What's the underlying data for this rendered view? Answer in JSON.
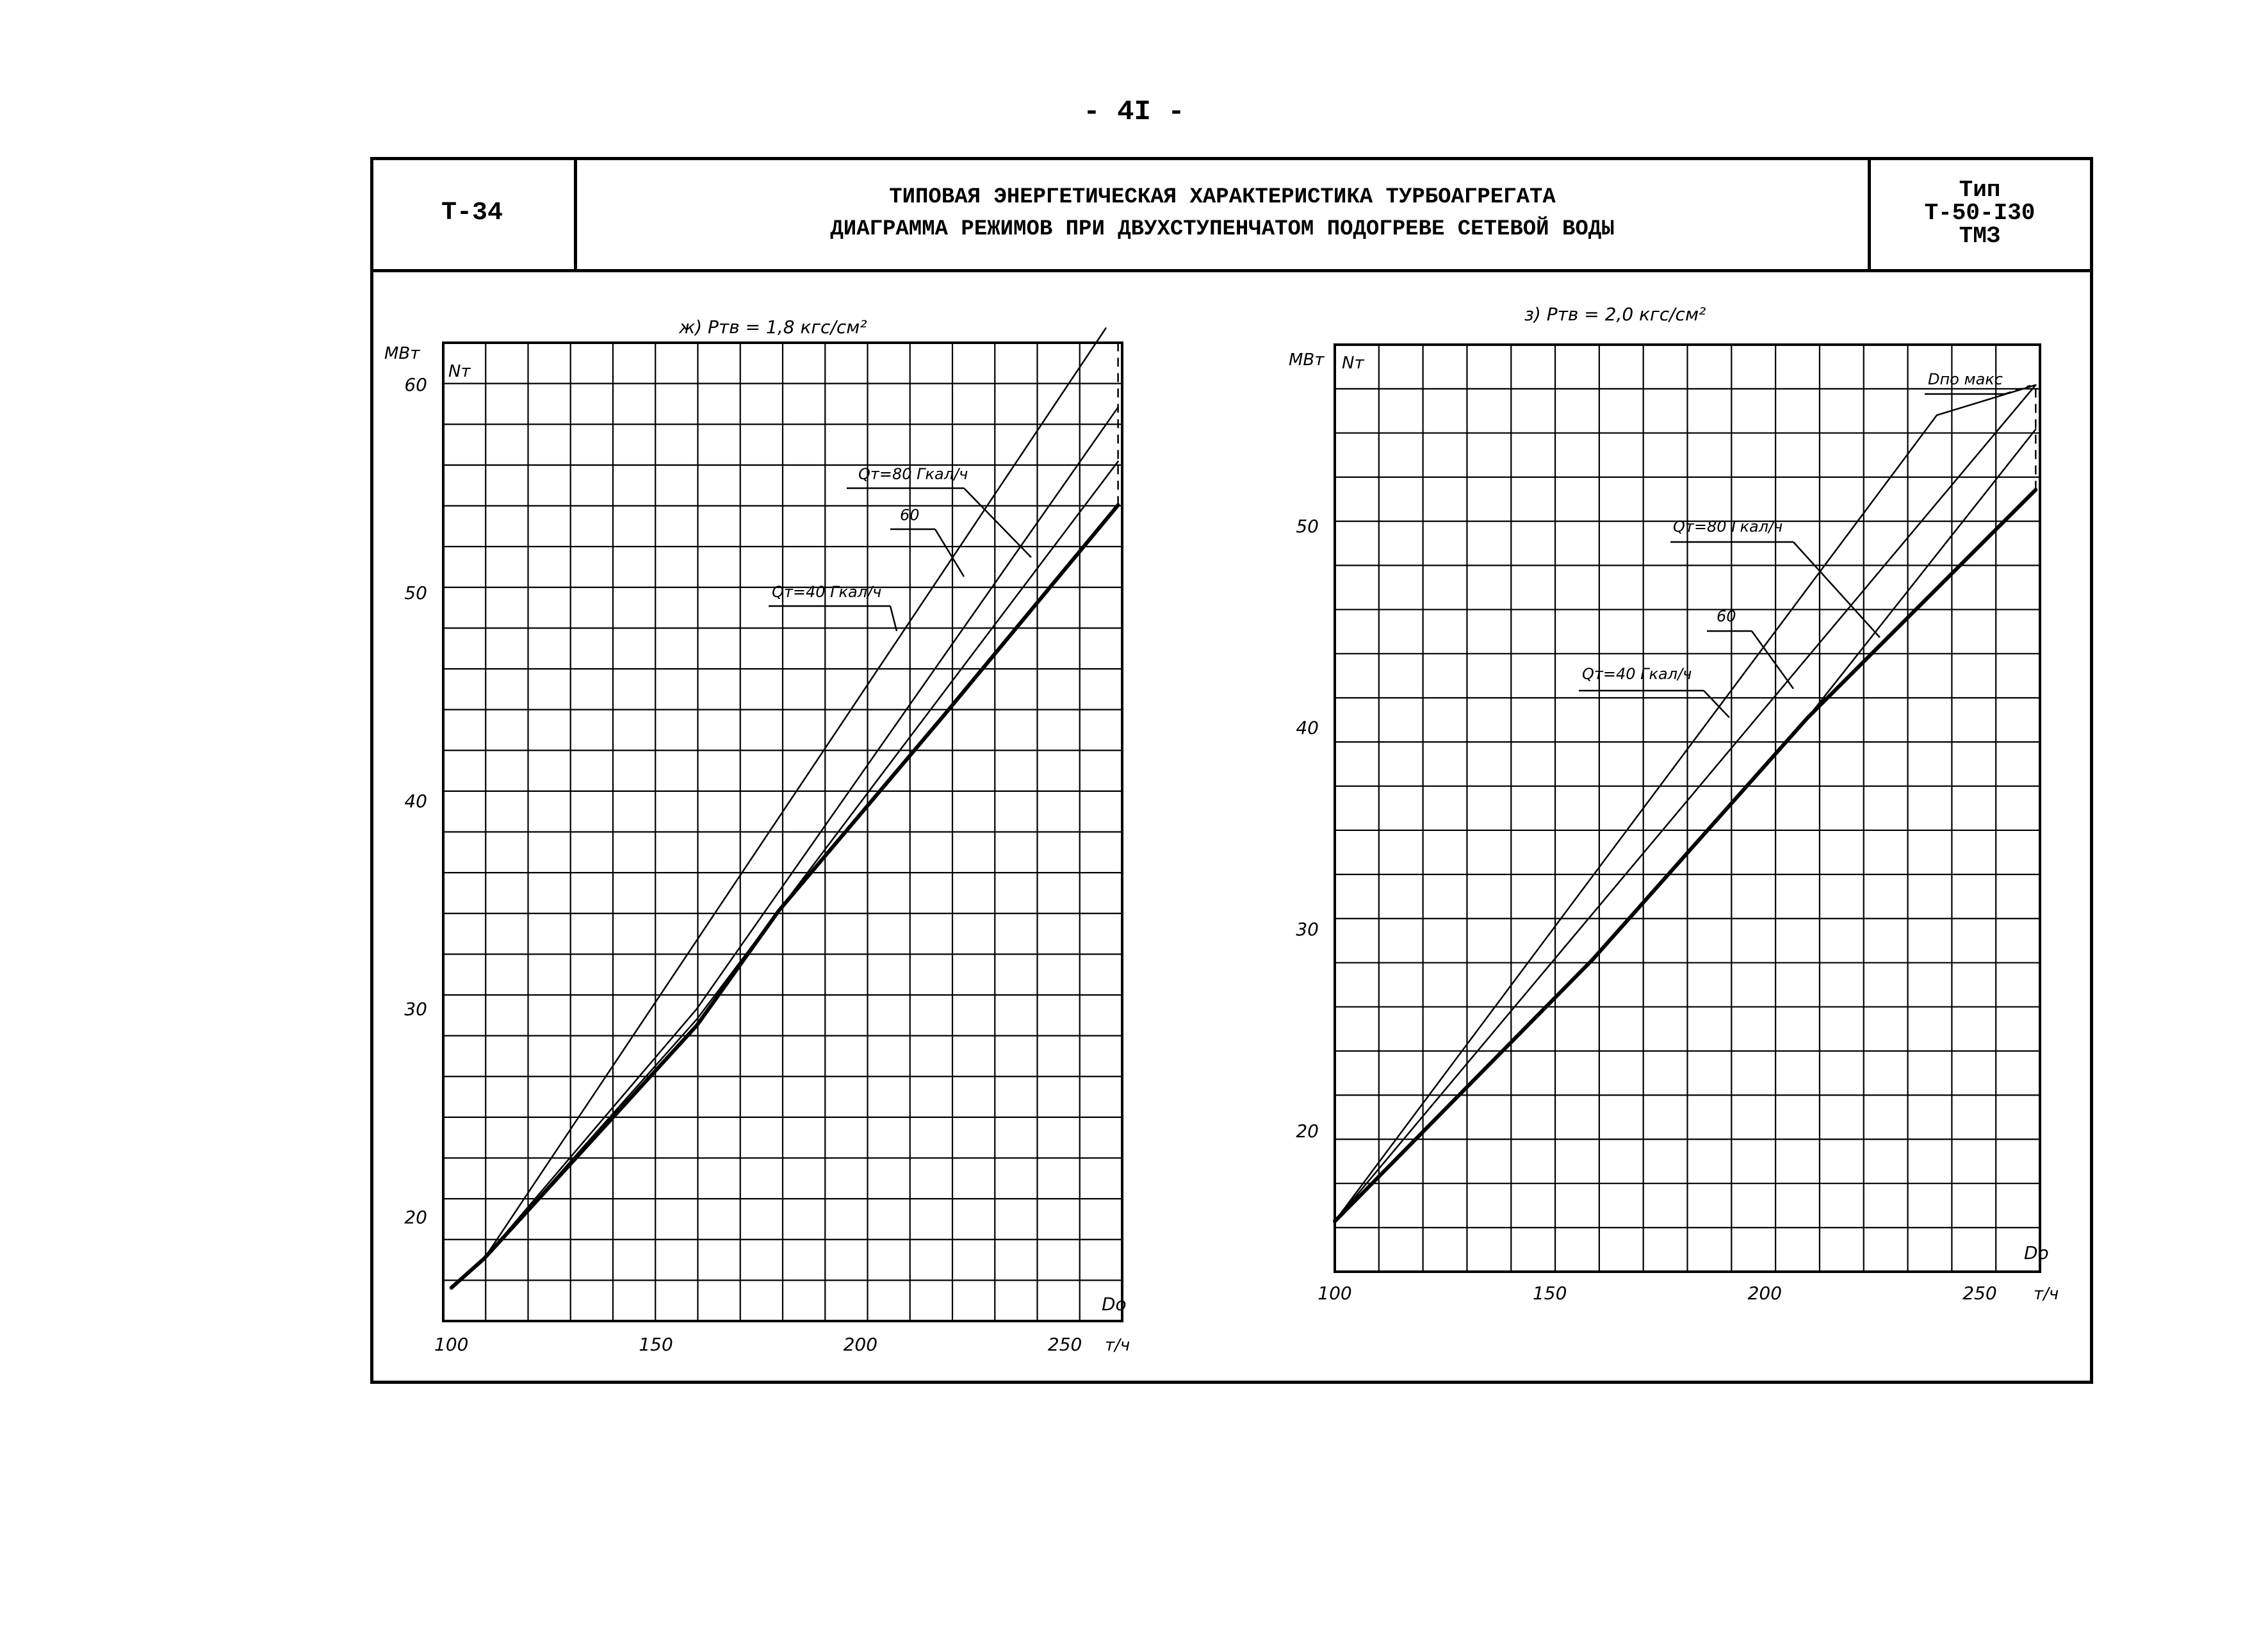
{
  "page_number": "- 4I -",
  "header": {
    "code": "Т-34",
    "title_line1": "ТИПОВАЯ ЭНЕРГЕТИЧЕСКАЯ ХАРАКТЕРИСТИКА ТУРБОАГРЕГАТА",
    "title_line2": "ДИАГРАММА РЕЖИМОВ ПРИ ДВУХСТУПЕНЧАТОМ ПОДОГРЕВЕ СЕТЕВОЙ ВОДЫ",
    "type_label": "Тип",
    "type_model": "Т-50-I30",
    "type_maker": "ТМЗ"
  },
  "colors": {
    "ink": "#000000",
    "paper": "#ffffff"
  },
  "chart_data": [
    {
      "type": "line",
      "title": "ж) Pтв = 1,8 кгс/см²",
      "xlabel": "Dо",
      "xunit": "т/ч",
      "ylabel": "Nт",
      "yunit": "МВт",
      "xlim": [
        98,
        264
      ],
      "ylim": [
        15,
        62
      ],
      "x_ticks": [
        100,
        150,
        200,
        250
      ],
      "y_ticks": [
        20,
        30,
        40,
        50,
        60
      ],
      "grid": true,
      "series": [
        {
          "name": "Qт=80 Гкал/ч",
          "x": [
            108,
            260
          ],
          "y": [
            18.0,
            62.7
          ],
          "stroke": 2.5
        },
        {
          "name": "60",
          "x": [
            108,
            160,
            263
          ],
          "y": [
            18.0,
            30.0,
            58.9
          ],
          "stroke": 2.5
        },
        {
          "name": "Qт=40 Гкал/ч",
          "x": [
            108,
            160,
            263
          ],
          "y": [
            18.0,
            29.5,
            56.3
          ],
          "stroke": 2.5
        },
        {
          "name": "",
          "x": [
            100,
            108,
            160,
            180,
            220,
            263
          ],
          "y": [
            16.6,
            18.0,
            29.2,
            34.7,
            44.0,
            54.2
          ],
          "stroke": 6
        }
      ],
      "limit_line": {
        "x": 263,
        "y_from": 54.2,
        "y_to": 62.0,
        "dashed": true
      },
      "annotations": [
        "Qт=80 Гкал/ч",
        "60",
        "Qт=40 Гкал/ч"
      ]
    },
    {
      "type": "line",
      "title": "з) Pтв = 2,0 кгс/см²",
      "xlabel": "Dо",
      "xunit": "т/ч",
      "ylabel": "Nт",
      "yunit": "МВт",
      "xlim": [
        100,
        264
      ],
      "ylim": [
        13,
        59
      ],
      "x_ticks": [
        100,
        150,
        200,
        250
      ],
      "y_ticks": [
        20,
        30,
        40,
        50
      ],
      "grid": true,
      "series": [
        {
          "name": "Qт=80 Гкал/ч",
          "x": [
            100,
            240,
            263
          ],
          "y": [
            15.5,
            55.5,
            57.0
          ],
          "stroke": 2.5
        },
        {
          "name": "60",
          "x": [
            100,
            263
          ],
          "y": [
            15.5,
            57.0
          ],
          "stroke": 2.5
        },
        {
          "name": "Qт=40 Гкал/ч",
          "x": [
            100,
            160,
            210,
            263
          ],
          "y": [
            15.5,
            28.5,
            40.5,
            54.8
          ],
          "stroke": 2.5
        },
        {
          "name": "",
          "x": [
            100,
            160,
            210,
            263
          ],
          "y": [
            15.5,
            28.5,
            40.5,
            51.8
          ],
          "stroke": 6
        }
      ],
      "limit_line": {
        "x": 263,
        "y_from": 51.8,
        "y_to": 57.0,
        "dashed": true
      },
      "annotations": [
        "Qт=80 Гкал/ч",
        "60",
        "Qт=40 Гкал/ч",
        "Dпо макс"
      ]
    }
  ]
}
